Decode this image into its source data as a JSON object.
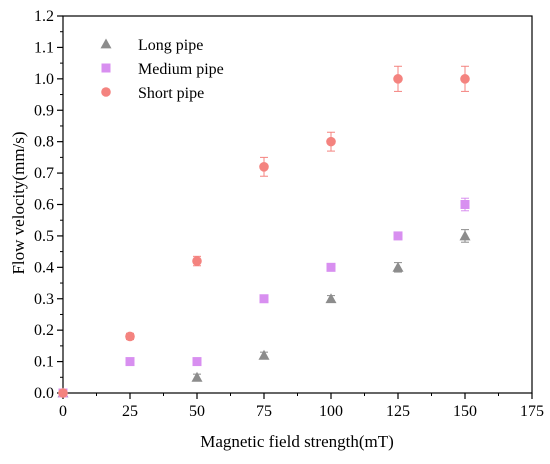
{
  "chart_data": {
    "type": "scatter",
    "xlabel": "Magnetic field strength(mT)",
    "ylabel": "Flow velocity(mm/s)",
    "xlim": [
      0,
      175
    ],
    "ylim": [
      0,
      1.2
    ],
    "xticks": [
      0,
      25,
      50,
      75,
      100,
      125,
      150,
      175
    ],
    "yticks": [
      0.0,
      0.1,
      0.2,
      0.3,
      0.4,
      0.5,
      0.6,
      0.7,
      0.8,
      0.9,
      1.0,
      1.1,
      1.2
    ],
    "grid": false,
    "legend": "top-left",
    "series": [
      {
        "name": "Long pipe",
        "marker": "triangle",
        "color": "#8c8c8c",
        "x": [
          0,
          50,
          75,
          100,
          125,
          150
        ],
        "y": [
          0,
          0.05,
          0.12,
          0.3,
          0.4,
          0.5
        ],
        "err": [
          0,
          0.01,
          0.01,
          0.01,
          0.015,
          0.02
        ]
      },
      {
        "name": "Medium pipe",
        "marker": "square",
        "color": "#d88ff0",
        "x": [
          0,
          25,
          50,
          75,
          100,
          125,
          150
        ],
        "y": [
          0,
          0.1,
          0.1,
          0.3,
          0.4,
          0.5,
          0.6
        ],
        "err": [
          0,
          0.01,
          0.01,
          0.01,
          0.01,
          0.01,
          0.02
        ]
      },
      {
        "name": "Short pipe",
        "marker": "circle",
        "color": "#f4837f",
        "x": [
          0,
          25,
          50,
          75,
          100,
          125,
          150
        ],
        "y": [
          0,
          0.18,
          0.42,
          0.72,
          0.8,
          1.0,
          1.0
        ],
        "err": [
          0,
          0.01,
          0.015,
          0.03,
          0.03,
          0.04,
          0.04
        ]
      }
    ]
  }
}
